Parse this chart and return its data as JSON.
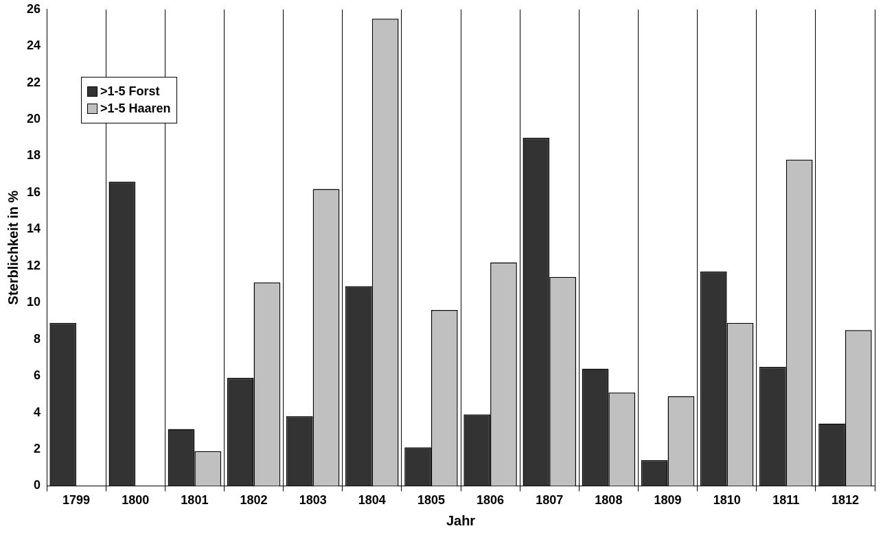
{
  "chart_data": {
    "type": "bar",
    "xlabel": "Jahr",
    "ylabel": "Sterblichkeit in %",
    "categories": [
      "1799",
      "1800",
      "1801",
      "1802",
      "1803",
      "1804",
      "1805",
      "1806",
      "1807",
      "1808",
      "1809",
      "1810",
      "1811",
      "1812"
    ],
    "series": [
      {
        "name": ">1-5 Forst",
        "color": "#333333",
        "values": [
          8.9,
          16.6,
          3.1,
          5.9,
          3.8,
          10.9,
          2.1,
          3.9,
          19.0,
          6.4,
          1.4,
          11.7,
          6.5,
          3.4
        ]
      },
      {
        "name": ">1-5 Haaren",
        "color": "#c0c0c0",
        "values": [
          0,
          0,
          1.9,
          11.1,
          16.2,
          25.5,
          9.6,
          12.2,
          11.4,
          5.1,
          4.9,
          8.9,
          17.8,
          8.5
        ]
      }
    ],
    "ylim": [
      0,
      26
    ],
    "yticks": [
      0,
      2,
      4,
      6,
      8,
      10,
      12,
      14,
      16,
      18,
      20,
      22,
      24,
      26
    ],
    "grid": "x",
    "legend": "top left"
  }
}
